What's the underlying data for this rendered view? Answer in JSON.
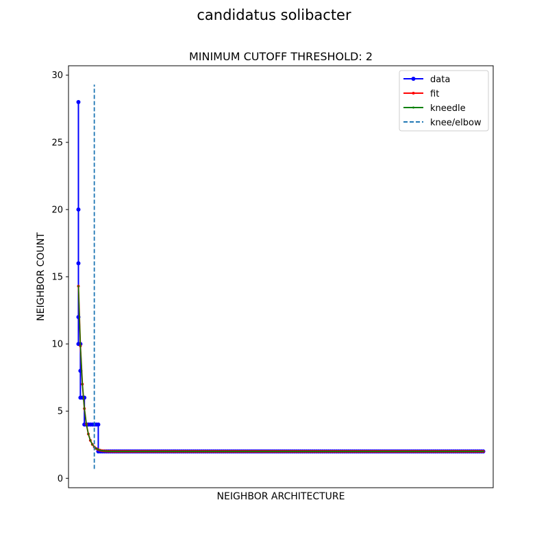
{
  "figure": {
    "suptitle": "candidatus solibacter"
  },
  "chart_data": {
    "type": "line",
    "title": "MINIMUM CUTOFF THRESHOLD: 2",
    "xlabel": "NEIGHBOR ARCHITECTURE",
    "ylabel": "NEIGHBOR COUNT",
    "x_tick_labels": false,
    "xlim": [
      -5,
      209
    ],
    "ylim": [
      -0.7,
      30.7
    ],
    "yticks": [
      0,
      5,
      10,
      15,
      20,
      25,
      30
    ],
    "grid": false,
    "legend": {
      "position": "top-right",
      "entries": [
        "data",
        "fit",
        "kneedle",
        "knee/elbow"
      ]
    },
    "colors": {
      "data": "#0000ff",
      "fit": "#ff0000",
      "kneedle": "#008000",
      "knee_elbow": "#1f77b4"
    },
    "series": [
      {
        "name": "data",
        "marker": "circle",
        "segments": [
          {
            "y": 28,
            "x_from": 0,
            "x_to": 0
          },
          {
            "y": 20,
            "x_from": 0,
            "x_to": 0
          },
          {
            "y": 16,
            "x_from": 0,
            "x_to": 0
          },
          {
            "y": 12,
            "x_from": 0,
            "x_to": 0
          },
          {
            "y": 10,
            "x_from": 0,
            "x_to": 1
          },
          {
            "y": 8,
            "x_from": 1,
            "x_to": 1
          },
          {
            "y": 6,
            "x_from": 1,
            "x_to": 3
          },
          {
            "y": 4,
            "x_from": 3,
            "x_to": 10
          },
          {
            "y": 2,
            "x_from": 10,
            "x_to": 204
          }
        ]
      },
      {
        "name": "fit",
        "marker": "point",
        "model": "exponential decay",
        "a": 14.3,
        "k": 0.45,
        "c": 2.0,
        "x_range": [
          0,
          204
        ]
      },
      {
        "name": "kneedle",
        "marker": "point",
        "same_as": "fit",
        "x_range": [
          0,
          204
        ]
      }
    ],
    "annotations": [
      {
        "name": "knee/elbow",
        "type": "vline",
        "x": 8,
        "y_range": [
          0.7,
          29.3
        ],
        "style": "dashed"
      }
    ]
  }
}
